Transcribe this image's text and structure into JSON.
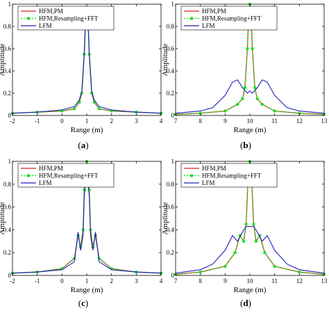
{
  "figure": {
    "legend_labels": [
      "HFM,PM",
      "HFM,Resampling+FFT",
      "LFM"
    ],
    "colors": {
      "hfm_pm": "#e0211f",
      "hfm_fft": "#22dd22",
      "lfm": "#1f1fb8",
      "axis": "#000000"
    }
  },
  "chart_data": [
    {
      "type": "line",
      "panel_label": "a",
      "xlabel": "Range (m)",
      "ylabel": "Amplitude",
      "xlim": [
        -2,
        4
      ],
      "ylim": [
        0,
        1
      ],
      "xticks": [
        "-2",
        "-1",
        "0",
        "1",
        "2",
        "3",
        "4"
      ],
      "yticks": [
        "0",
        "0.2",
        "0.4",
        "0.6",
        "0.8",
        "1"
      ],
      "legend": [
        "HFM,PM",
        "HFM,Resampling+FFT",
        "LFM"
      ],
      "legend_position": "top-left",
      "grid": false,
      "series": [
        {
          "name": "HFM,PM",
          "x": [
            -2,
            -1,
            0,
            0.5,
            0.7,
            0.8,
            0.9,
            0.95,
            1,
            1.05,
            1.1,
            1.2,
            1.3,
            1.5,
            2,
            3,
            4
          ],
          "y": [
            0.02,
            0.03,
            0.04,
            0.06,
            0.12,
            0.2,
            0.55,
            0.85,
            0.96,
            0.85,
            0.55,
            0.2,
            0.12,
            0.06,
            0.04,
            0.03,
            0.02
          ]
        },
        {
          "name": "HFM,Resampling+FFT",
          "x": [
            -2,
            -1,
            0,
            0.5,
            0.7,
            0.8,
            0.9,
            0.95,
            1,
            1.05,
            1.1,
            1.2,
            1.3,
            1.5,
            2,
            3,
            4
          ],
          "y": [
            0.02,
            0.03,
            0.04,
            0.06,
            0.12,
            0.2,
            0.55,
            0.85,
            0.96,
            0.85,
            0.55,
            0.2,
            0.12,
            0.06,
            0.04,
            0.03,
            0.02
          ]
        },
        {
          "name": "LFM",
          "x": [
            -2,
            -1,
            0,
            0.5,
            0.7,
            0.8,
            0.9,
            0.95,
            1,
            1.05,
            1.1,
            1.2,
            1.3,
            1.5,
            2,
            3,
            4
          ],
          "y": [
            0.02,
            0.03,
            0.05,
            0.08,
            0.14,
            0.22,
            0.56,
            0.86,
            0.93,
            0.86,
            0.56,
            0.22,
            0.14,
            0.08,
            0.05,
            0.03,
            0.02
          ]
        }
      ]
    },
    {
      "type": "line",
      "panel_label": "b",
      "xlabel": "Range (m)",
      "ylabel": "Amplitude",
      "xlim": [
        7,
        13
      ],
      "ylim": [
        0,
        1
      ],
      "xticks": [
        "7",
        "8",
        "9",
        "10",
        "11",
        "12",
        "13"
      ],
      "yticks": [
        "0",
        "0.2",
        "0.4",
        "0.6",
        "0.8",
        "1"
      ],
      "legend": [
        "HFM,PM",
        "HFM,Resampling+FFT",
        "LFM"
      ],
      "legend_position": "top-left",
      "grid": false,
      "series": [
        {
          "name": "HFM,PM",
          "x": [
            7,
            8,
            9,
            9.5,
            9.7,
            9.8,
            9.9,
            9.95,
            10,
            10.05,
            10.1,
            10.2,
            10.3,
            10.5,
            11,
            12,
            13
          ],
          "y": [
            0.01,
            0.02,
            0.04,
            0.1,
            0.15,
            0.25,
            0.6,
            0.88,
            1.0,
            0.88,
            0.6,
            0.25,
            0.15,
            0.1,
            0.04,
            0.02,
            0.01
          ]
        },
        {
          "name": "HFM,Resampling+FFT",
          "x": [
            7,
            8,
            9,
            9.5,
            9.7,
            9.8,
            9.9,
            9.95,
            10,
            10.05,
            10.1,
            10.2,
            10.3,
            10.5,
            11,
            12,
            13
          ],
          "y": [
            0.01,
            0.02,
            0.04,
            0.1,
            0.15,
            0.25,
            0.6,
            0.88,
            1.0,
            0.88,
            0.6,
            0.25,
            0.15,
            0.1,
            0.04,
            0.02,
            0.01
          ]
        },
        {
          "name": "LFM",
          "x": [
            7,
            8,
            8.5,
            9,
            9.3,
            9.5,
            9.7,
            9.9,
            10,
            10.1,
            10.3,
            10.5,
            10.7,
            11,
            11.5,
            12,
            13
          ],
          "y": [
            0.02,
            0.04,
            0.07,
            0.18,
            0.3,
            0.32,
            0.25,
            0.2,
            0.22,
            0.2,
            0.25,
            0.32,
            0.3,
            0.18,
            0.07,
            0.04,
            0.02
          ]
        }
      ]
    },
    {
      "type": "line",
      "panel_label": "c",
      "xlabel": "Range (m)",
      "ylabel": "Amplitude",
      "xlim": [
        -2,
        4
      ],
      "ylim": [
        0,
        1
      ],
      "xticks": [
        "-2",
        "-1",
        "0",
        "1",
        "2",
        "3",
        "4"
      ],
      "yticks": [
        "0",
        "0.2",
        "0.4",
        "0.6",
        "0.8",
        "1"
      ],
      "legend": [
        "HFM,PM",
        "HFM,Resampling+FFT",
        "LFM"
      ],
      "legend_position": "top-left",
      "grid": false,
      "series": [
        {
          "name": "HFM,PM",
          "x": [
            -2,
            -1,
            0,
            0.5,
            0.65,
            0.75,
            0.85,
            0.9,
            1,
            1.1,
            1.15,
            1.25,
            1.35,
            1.5,
            2,
            3,
            4
          ],
          "y": [
            0.02,
            0.03,
            0.06,
            0.15,
            0.35,
            0.25,
            0.4,
            0.75,
            1.0,
            0.75,
            0.4,
            0.25,
            0.35,
            0.15,
            0.06,
            0.03,
            0.02
          ]
        },
        {
          "name": "HFM,Resampling+FFT",
          "x": [
            -2,
            -1,
            0,
            0.5,
            0.65,
            0.75,
            0.85,
            0.9,
            1,
            1.1,
            1.15,
            1.25,
            1.35,
            1.5,
            2,
            3,
            4
          ],
          "y": [
            0.02,
            0.03,
            0.06,
            0.15,
            0.35,
            0.25,
            0.4,
            0.75,
            1.0,
            0.75,
            0.4,
            0.25,
            0.35,
            0.15,
            0.06,
            0.03,
            0.02
          ]
        },
        {
          "name": "LFM",
          "x": [
            -2,
            -1,
            0,
            0.5,
            0.65,
            0.75,
            0.85,
            0.9,
            1,
            1.1,
            1.15,
            1.25,
            1.35,
            1.5,
            2,
            3,
            4
          ],
          "y": [
            0.02,
            0.03,
            0.05,
            0.12,
            0.38,
            0.22,
            0.35,
            0.7,
            0.91,
            0.7,
            0.35,
            0.22,
            0.38,
            0.12,
            0.05,
            0.03,
            0.02
          ]
        }
      ]
    },
    {
      "type": "line",
      "panel_label": "d",
      "xlabel": "Range (m)",
      "ylabel": "Amplitude",
      "xlim": [
        7,
        13
      ],
      "ylim": [
        0,
        1
      ],
      "xticks": [
        "7",
        "8",
        "9",
        "10",
        "11",
        "12",
        "13"
      ],
      "yticks": [
        "0",
        "0.2",
        "0.4",
        "0.6",
        "0.8",
        "1"
      ],
      "legend": [
        "HFM,PM",
        "HFM,Resampling+FFT",
        "LFM"
      ],
      "legend_position": "top-left",
      "grid": false,
      "series": [
        {
          "name": "HFM,PM",
          "x": [
            7,
            8,
            9,
            9.4,
            9.6,
            9.75,
            9.85,
            9.92,
            10,
            10.08,
            10.15,
            10.25,
            10.4,
            10.6,
            11,
            12,
            13
          ],
          "y": [
            0.01,
            0.03,
            0.08,
            0.2,
            0.35,
            0.3,
            0.45,
            0.8,
            1.0,
            0.8,
            0.45,
            0.3,
            0.35,
            0.2,
            0.08,
            0.03,
            0.01
          ]
        },
        {
          "name": "HFM,Resampling+FFT",
          "x": [
            7,
            8,
            9,
            9.4,
            9.6,
            9.75,
            9.85,
            9.92,
            10,
            10.08,
            10.15,
            10.25,
            10.4,
            10.6,
            11,
            12,
            13
          ],
          "y": [
            0.01,
            0.03,
            0.08,
            0.2,
            0.35,
            0.3,
            0.45,
            0.8,
            1.0,
            0.8,
            0.45,
            0.3,
            0.35,
            0.2,
            0.08,
            0.03,
            0.01
          ]
        },
        {
          "name": "LFM",
          "x": [
            7,
            8,
            8.5,
            9,
            9.3,
            9.5,
            9.7,
            9.85,
            10,
            10.15,
            10.3,
            10.5,
            10.7,
            11,
            11.5,
            12,
            13
          ],
          "y": [
            0.02,
            0.05,
            0.1,
            0.22,
            0.35,
            0.3,
            0.38,
            0.43,
            0.43,
            0.43,
            0.38,
            0.3,
            0.35,
            0.22,
            0.1,
            0.05,
            0.02
          ]
        }
      ]
    }
  ]
}
